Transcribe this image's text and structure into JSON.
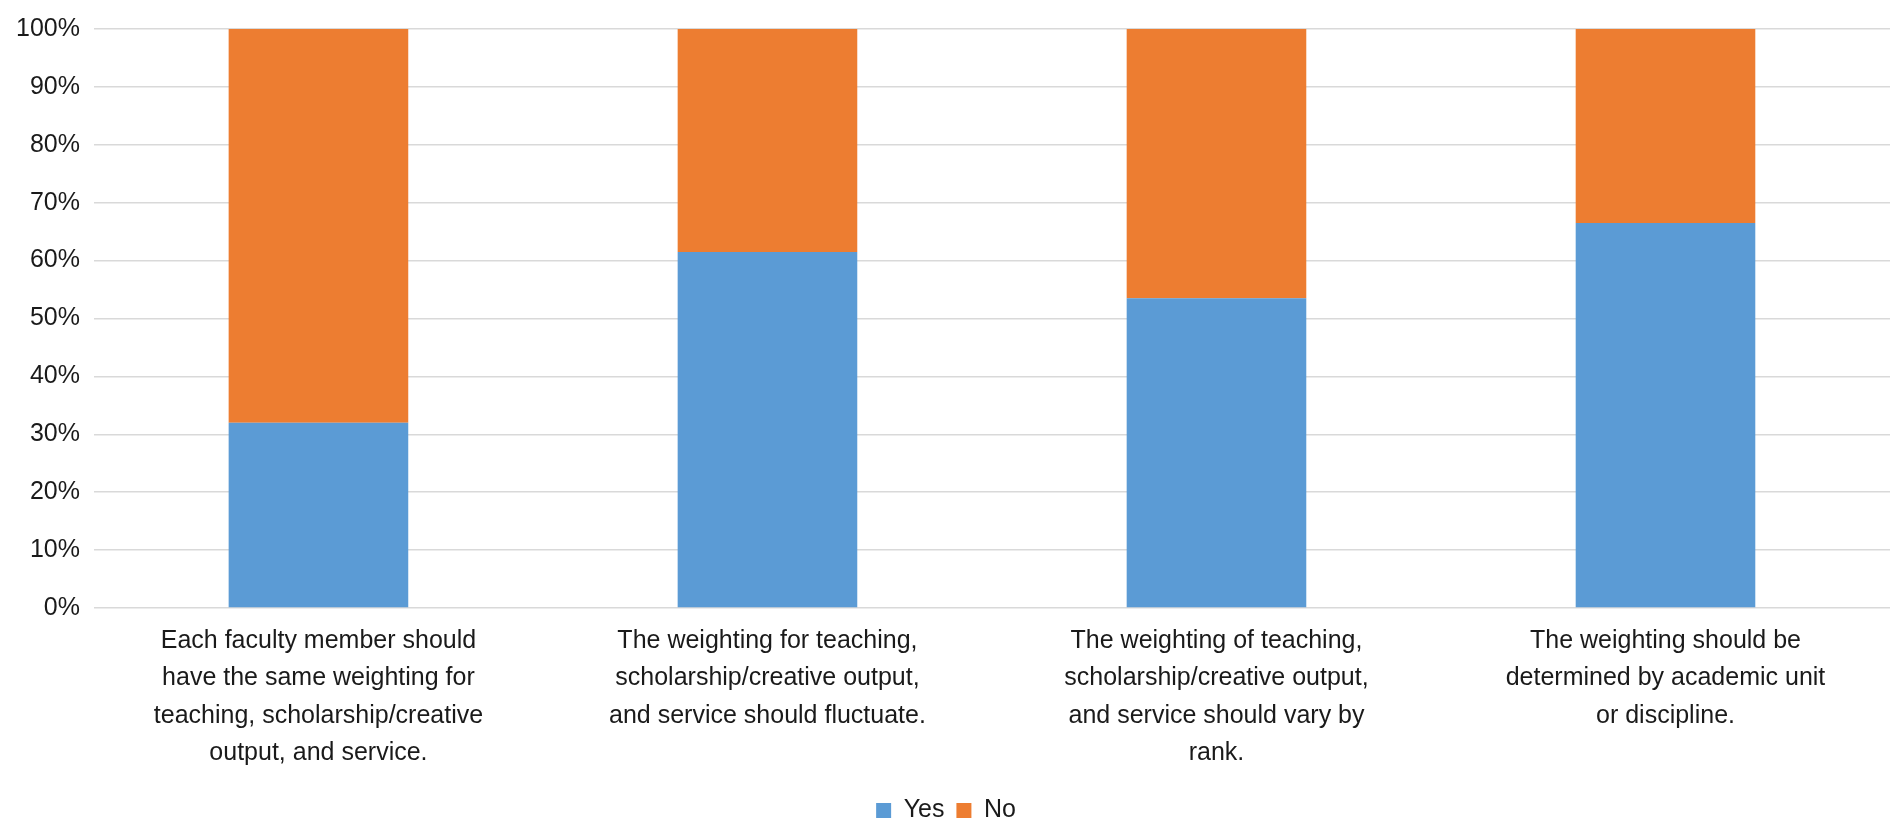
{
  "chart_data": {
    "type": "bar",
    "stacked": true,
    "categories": [
      "Each faculty member should have the same weighting for teaching, scholarship/creative output, and service.",
      "The weighting for teaching, scholarship/creative output, and service should fluctuate.",
      "The weighting of teaching, scholarship/creative output, and service should vary by rank.",
      "The weighting should be determined by academic unit or discipline."
    ],
    "series": [
      {
        "name": "Yes",
        "color": "#5b9bd5",
        "values": [
          32,
          61.5,
          53.5,
          66.5
        ]
      },
      {
        "name": "No",
        "color": "#ed7d31",
        "values": [
          68,
          38.5,
          46.5,
          33.5
        ]
      }
    ],
    "ylim": [
      0,
      100
    ],
    "yticks": [
      {
        "value": 0,
        "label": "0%"
      },
      {
        "value": 10,
        "label": "10%"
      },
      {
        "value": 20,
        "label": "20%"
      },
      {
        "value": 30,
        "label": "30%"
      },
      {
        "value": 40,
        "label": "40%"
      },
      {
        "value": 50,
        "label": "50%"
      },
      {
        "value": 60,
        "label": "60%"
      },
      {
        "value": 70,
        "label": "70%"
      },
      {
        "value": 80,
        "label": "80%"
      },
      {
        "value": 90,
        "label": "90%"
      },
      {
        "value": 100,
        "label": "100%"
      }
    ],
    "grid": "y",
    "legend": "bottom"
  }
}
